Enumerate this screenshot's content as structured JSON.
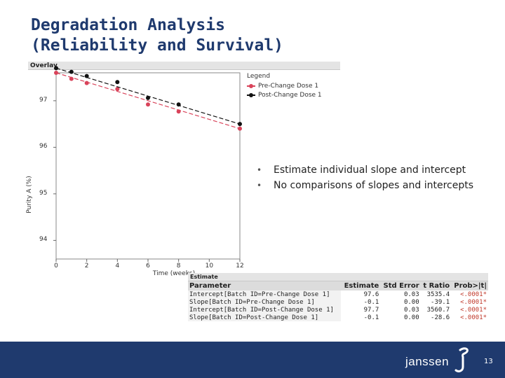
{
  "title": {
    "line1": "Degradation Analysis",
    "line2": "(Reliability and Survival)"
  },
  "overlay": {
    "header": "Overlay"
  },
  "legend": {
    "title": "Legend",
    "items": [
      {
        "label": "Pre-Change Dose 1",
        "color": "#d9435a"
      },
      {
        "label": "Post-Change Dose 1",
        "color": "#111111"
      }
    ]
  },
  "chart_data": {
    "type": "scatter",
    "title": "Overlay",
    "xlabel": "Time (weeks)",
    "ylabel": "Purity A (%)",
    "xlim": [
      0,
      12
    ],
    "ylim": [
      93.6,
      97.6
    ],
    "xticks": [
      0,
      2,
      4,
      6,
      8,
      10,
      12
    ],
    "yticks": [
      94,
      95,
      96,
      97
    ],
    "ytick_labels": [
      "94",
      "95",
      "96",
      "97"
    ],
    "series": [
      {
        "name": "Pre-Change Dose 1",
        "color": "#d9435a",
        "x": [
          0,
          1,
          2,
          4,
          6,
          8,
          12
        ],
        "y": [
          97.6,
          97.47,
          97.38,
          97.25,
          96.92,
          96.77,
          96.4
        ],
        "fit": [
          [
            0,
            97.6
          ],
          [
            12,
            96.4
          ]
        ]
      },
      {
        "name": "Post-Change Dose 1",
        "color": "#111111",
        "x": [
          0,
          1,
          2,
          4,
          6,
          8,
          12
        ],
        "y": [
          97.7,
          97.62,
          97.53,
          97.4,
          97.06,
          96.92,
          96.5
        ],
        "fit": [
          [
            0,
            97.7
          ],
          [
            12,
            96.5
          ]
        ]
      }
    ]
  },
  "bullets": [
    "Estimate individual slope and intercept",
    "No comparisons of slopes and intercepts"
  ],
  "estimate": {
    "header": "Estimate",
    "columns": [
      "Parameter",
      "Estimate",
      "Std Error",
      "t Ratio",
      "Prob>|t|"
    ],
    "rows": [
      [
        "Intercept[Batch ID=Pre-Change Dose 1]",
        "97.6",
        "0.03",
        "3535.4",
        "<.0001*"
      ],
      [
        "Slope[Batch ID=Pre-Change Dose 1]",
        "-0.1",
        "0.00",
        "-39.1",
        "<.0001*"
      ],
      [
        "Intercept[Batch ID=Post-Change Dose 1]",
        "97.7",
        "0.03",
        "3560.7",
        "<.0001*"
      ],
      [
        "Slope[Batch ID=Post-Change Dose 1]",
        "-0.1",
        "0.00",
        "-28.6",
        "<.0001*"
      ]
    ]
  },
  "footer": {
    "brand": "janssen",
    "page": "13"
  }
}
